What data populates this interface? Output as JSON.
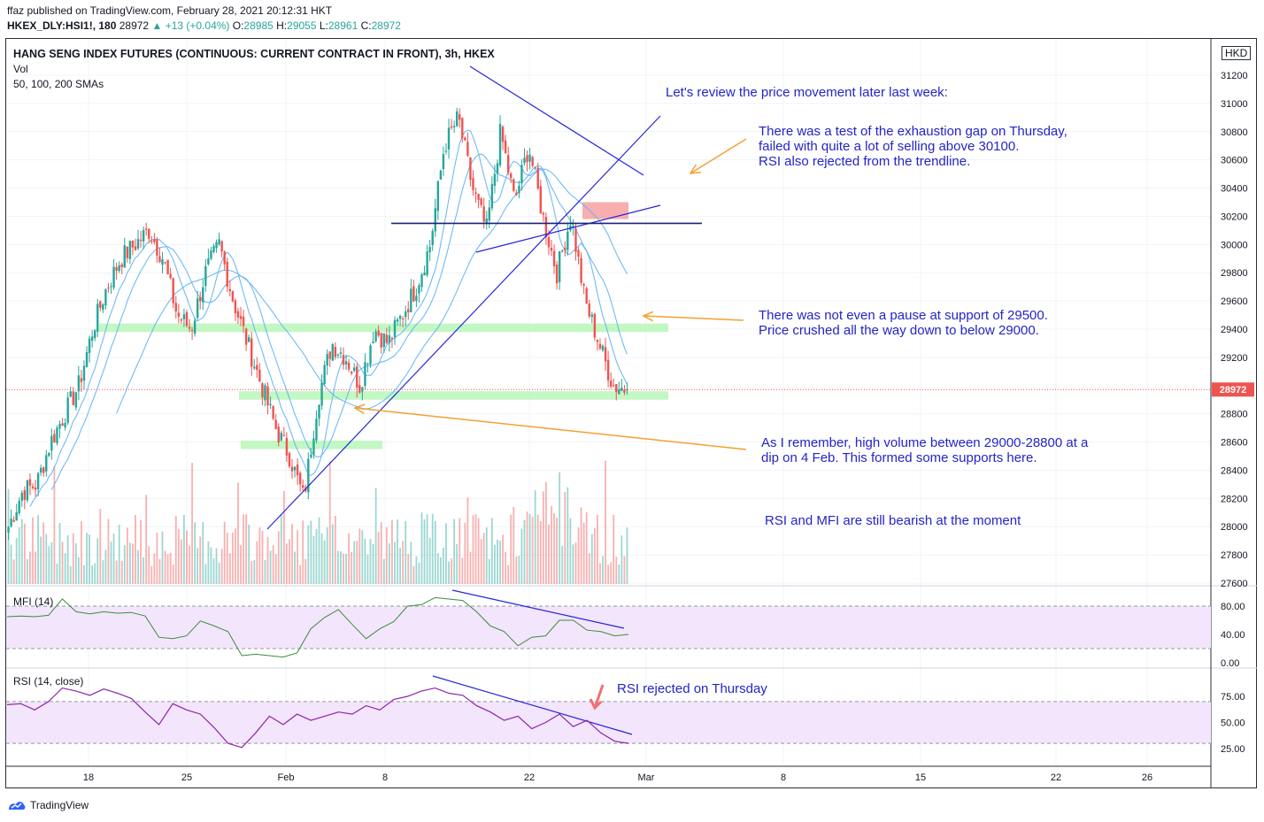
{
  "header": {
    "line1": "ffaz published on TradingView.com, February 28, 2021 20:12:31 HKT",
    "symbol": "HKEX_DLY:HSI1!, 180",
    "last": "28972",
    "change": "+13 (+0.04%)",
    "o_label": "O:",
    "o": "28985",
    "h_label": "H:",
    "h": "29055",
    "l_label": "L:",
    "l": "28961",
    "c_label": "C:",
    "c": "28972"
  },
  "legend": {
    "title": "HANG SENG INDEX FUTURES (CONTINUOUS: CURRENT CONTRACT IN FRONT), 3h, HKEX",
    "vol": "Vol",
    "smas": "50, 100, 200 SMAs",
    "mfi": "MFI (14)",
    "rsi": "RSI (14, close)"
  },
  "annotations": {
    "review": "Let's review the price movement later last week:",
    "gap1": "There was a test of the exhaustion gap on Thursday,",
    "gap2": "failed with quite a lot of selling above 30100.",
    "gap3": "RSI also rejected from the trendline.",
    "pause1": "There was not even a pause at support of 29500.",
    "pause2": "Price crushed all the way down to below 29000.",
    "vol1": "As I remember, high volume between 29000-28800 at a",
    "vol2": "dip on 4 Feb. This formed some supports here.",
    "bear": "RSI and MFI are still bearish at the moment",
    "rsirej": "RSI rejected on Thursday"
  },
  "footer": {
    "brand": "TradingView",
    "currency": "HKD"
  },
  "colors": {
    "up": "#26a69a",
    "down": "#ef5350",
    "sma": "#64b5f6",
    "trend": "#2626d9",
    "support": "#b9f6b9",
    "resist": "#f7a0a0",
    "arrow": "#f5a030",
    "mfi": "#388e3c",
    "rsi": "#8e24aa",
    "band": "#f3e5fb"
  },
  "chart_data": [
    {
      "type": "candlestick",
      "title": "HANG SENG INDEX FUTURES (CONTINUOUS: CURRENT CONTRACT IN FRONT), 3h, HKEX",
      "ylim": [
        27600,
        31400
      ],
      "y_ticks": [
        31200,
        31000,
        30800,
        30600,
        30400,
        30200,
        30000,
        29800,
        29600,
        29400,
        29200,
        28800,
        28600,
        28400,
        28200,
        28000,
        27800,
        27600
      ],
      "x_ticks": [
        "18",
        "25",
        "Feb",
        "8",
        "22",
        "Mar",
        "8",
        "15",
        "22",
        "26"
      ],
      "last_price": 28972,
      "closes_approx": [
        28000,
        28250,
        28300,
        28600,
        28800,
        29000,
        29400,
        29700,
        29900,
        30000,
        30100,
        29900,
        29500,
        29400,
        29800,
        30000,
        29600,
        29300,
        29000,
        28700,
        28500,
        28200,
        28900,
        29300,
        29200,
        29000,
        29400,
        29300,
        29500,
        29700,
        30000,
        30700,
        30900,
        30400,
        30100,
        30800,
        30300,
        30700,
        30200,
        29800,
        30200,
        29600,
        29300,
        29000,
        28972
      ],
      "sma_lines": [
        "50",
        "100",
        "200"
      ],
      "support_zones": [
        [
          29380,
          29440
        ],
        [
          28900,
          28960
        ],
        [
          28550,
          28610
        ]
      ],
      "resistance_zone": [
        30180,
        30300
      ],
      "horizontal_line": 30150
    },
    {
      "type": "line",
      "title": "MFI (14)",
      "ylim": [
        0,
        100
      ],
      "y_ticks": [
        80,
        40,
        0
      ],
      "band": [
        20,
        80
      ],
      "values_approx": [
        65,
        66,
        65,
        67,
        90,
        72,
        69,
        72,
        70,
        71,
        66,
        36,
        34,
        38,
        59,
        52,
        44,
        10,
        12,
        10,
        8,
        14,
        48,
        64,
        75,
        54,
        34,
        48,
        58,
        80,
        82,
        92,
        90,
        88,
        72,
        52,
        44,
        24,
        36,
        38,
        60,
        60,
        46,
        44,
        38,
        40
      ]
    },
    {
      "type": "line",
      "title": "RSI (14, close)",
      "ylim": [
        20,
        90
      ],
      "y_ticks": [
        75,
        50,
        25
      ],
      "band": [
        30,
        70
      ],
      "values_approx": [
        67,
        68,
        62,
        70,
        83,
        80,
        76,
        82,
        78,
        73,
        60,
        48,
        68,
        62,
        58,
        45,
        30,
        26,
        40,
        56,
        48,
        58,
        52,
        56,
        60,
        58,
        66,
        62,
        72,
        75,
        80,
        83,
        78,
        76,
        66,
        60,
        52,
        56,
        44,
        50,
        58,
        46,
        52,
        40,
        32,
        30
      ]
    }
  ]
}
